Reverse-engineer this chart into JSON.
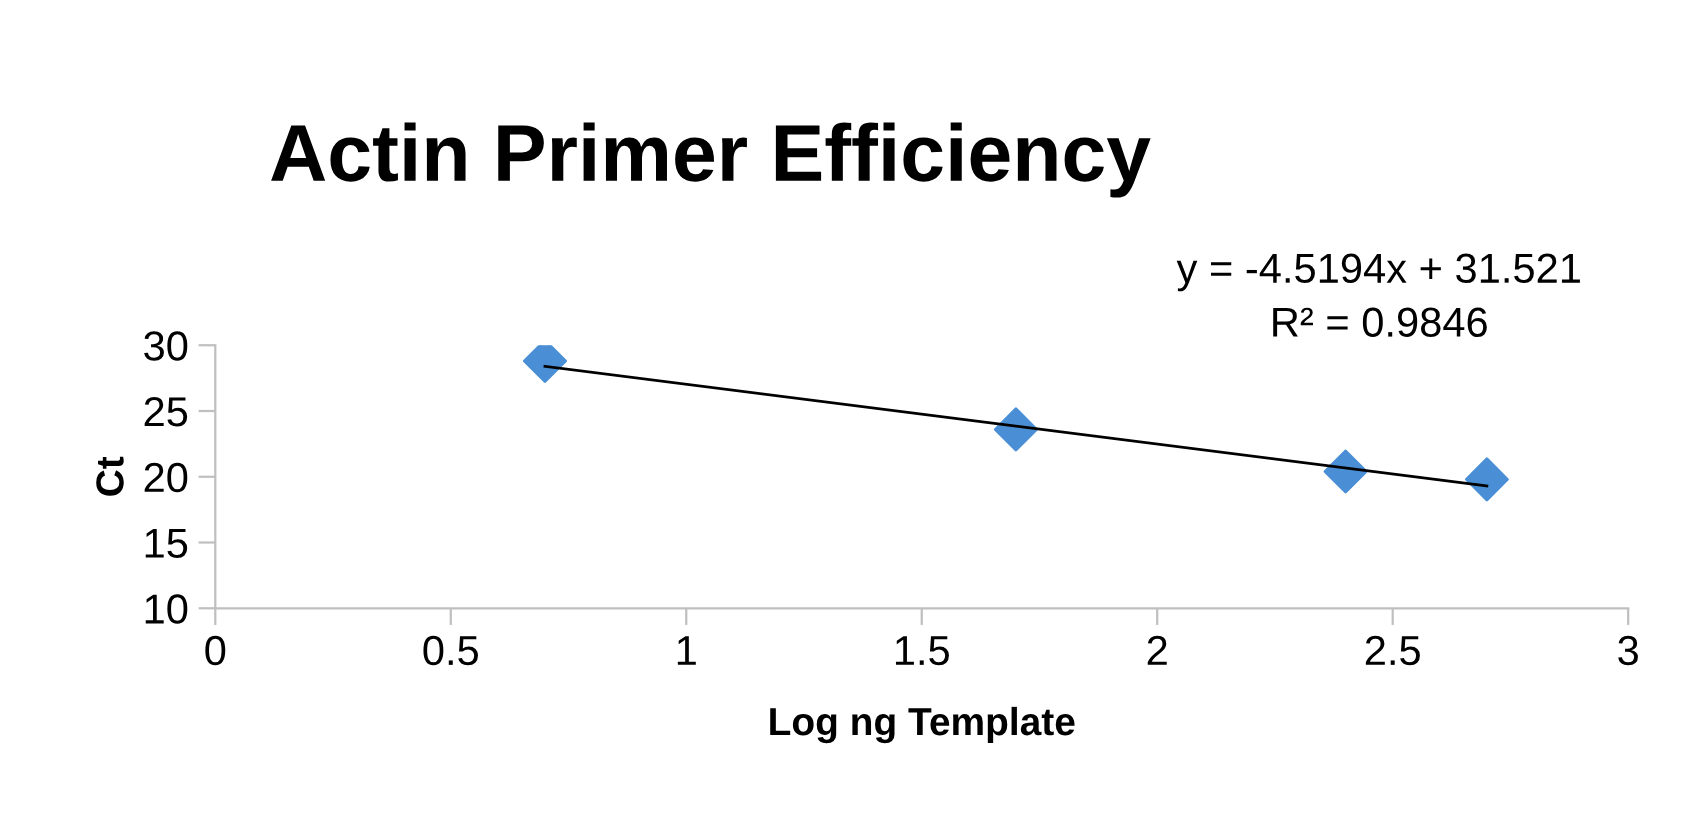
{
  "chart_data": {
    "type": "scatter",
    "title": "Actin Primer Efficiency",
    "xlabel": "Log ng Template",
    "ylabel": "Ct",
    "x": [
      0.7,
      1.7,
      2.4,
      2.7
    ],
    "series": [
      {
        "color": "#4a8fd6",
        "marker": "diamond",
        "values": [
          28.8,
          23.6,
          20.4,
          19.8
        ]
      },
      {
        "type": "line",
        "color": "#000000",
        "x": [
          0.7,
          2.7
        ],
        "values": [
          28.4,
          19.3
        ]
      }
    ],
    "annotations": [
      "y = -4.5194x + 31.521\nR² = 0.9846"
    ],
    "xlim": [
      0,
      3
    ],
    "xticks": [
      0,
      0.5,
      1,
      1.5,
      2,
      2.5,
      3
    ],
    "ylim": [
      10,
      30
    ],
    "yticks": [
      10,
      15,
      20,
      25,
      30
    ],
    "grid": false,
    "legend": false
  }
}
